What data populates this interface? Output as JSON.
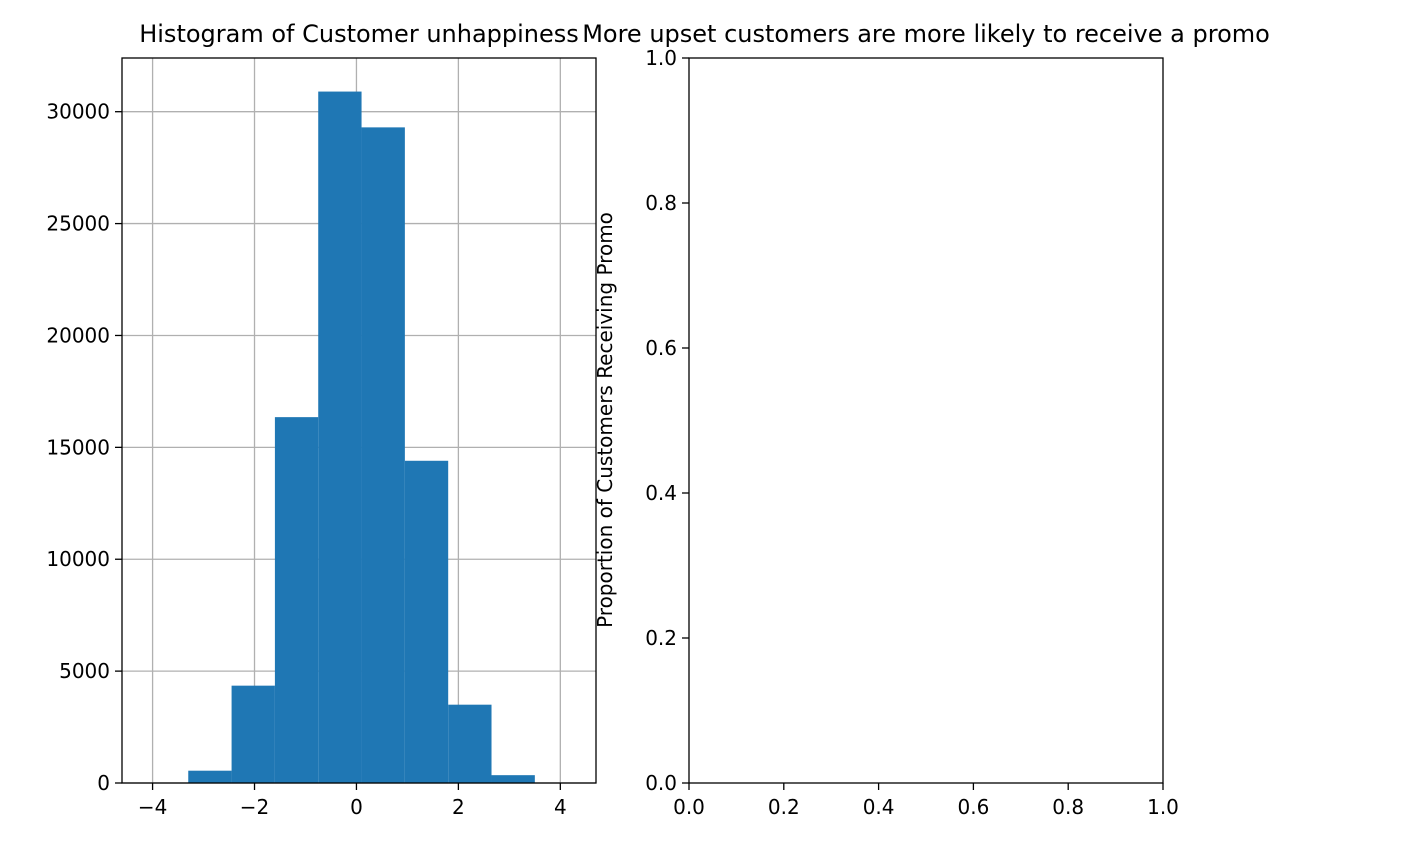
{
  "chart_data": [
    {
      "type": "bar",
      "title": "Histogram of Customer unhappiness",
      "xlabel": "",
      "ylabel": "",
      "xlim": [
        -4.6,
        4.7
      ],
      "ylim": [
        0,
        32400
      ],
      "grid": true,
      "bar_color": "#1f77b4",
      "grid_color": "#b0b0b0",
      "bins": [
        {
          "x0": -3.3,
          "x1": -2.45,
          "count": 550
        },
        {
          "x0": -2.45,
          "x1": -1.6,
          "count": 4350
        },
        {
          "x0": -1.6,
          "x1": -0.75,
          "count": 16350
        },
        {
          "x0": -0.75,
          "x1": 0.1,
          "count": 30900
        },
        {
          "x0": 0.1,
          "x1": 0.95,
          "count": 29300
        },
        {
          "x0": 0.95,
          "x1": 1.8,
          "count": 14400
        },
        {
          "x0": 1.8,
          "x1": 2.65,
          "count": 3500
        },
        {
          "x0": 2.65,
          "x1": 3.5,
          "count": 350
        }
      ],
      "x_ticks": [
        {
          "value": -4,
          "label": "−4"
        },
        {
          "value": -2,
          "label": "−2"
        },
        {
          "value": 0,
          "label": "0"
        },
        {
          "value": 2,
          "label": "2"
        },
        {
          "value": 4,
          "label": "4"
        }
      ],
      "y_ticks": [
        {
          "value": 0,
          "label": "0"
        },
        {
          "value": 5000,
          "label": "5000"
        },
        {
          "value": 10000,
          "label": "10000"
        },
        {
          "value": 15000,
          "label": "15000"
        },
        {
          "value": 20000,
          "label": "20000"
        },
        {
          "value": 25000,
          "label": "25000"
        },
        {
          "value": 30000,
          "label": "30000"
        }
      ]
    },
    {
      "type": "scatter",
      "title": "More upset customers are more likely to receive a promo",
      "xlabel": "",
      "ylabel": "Proportion of Customers Receiving Promo",
      "xlim": [
        0,
        1
      ],
      "ylim": [
        0,
        1
      ],
      "grid": false,
      "series": [],
      "x_ticks": [
        {
          "value": 0,
          "label": "0.0"
        },
        {
          "value": 0.2,
          "label": "0.2"
        },
        {
          "value": 0.4,
          "label": "0.4"
        },
        {
          "value": 0.6,
          "label": "0.6"
        },
        {
          "value": 0.8,
          "label": "0.8"
        },
        {
          "value": 1,
          "label": "1.0"
        }
      ],
      "y_ticks": [
        {
          "value": 0,
          "label": "0.0"
        },
        {
          "value": 0.2,
          "label": "0.2"
        },
        {
          "value": 0.4,
          "label": "0.4"
        },
        {
          "value": 0.6,
          "label": "0.6"
        },
        {
          "value": 0.8,
          "label": "0.8"
        },
        {
          "value": 1,
          "label": "1.0"
        }
      ]
    }
  ]
}
